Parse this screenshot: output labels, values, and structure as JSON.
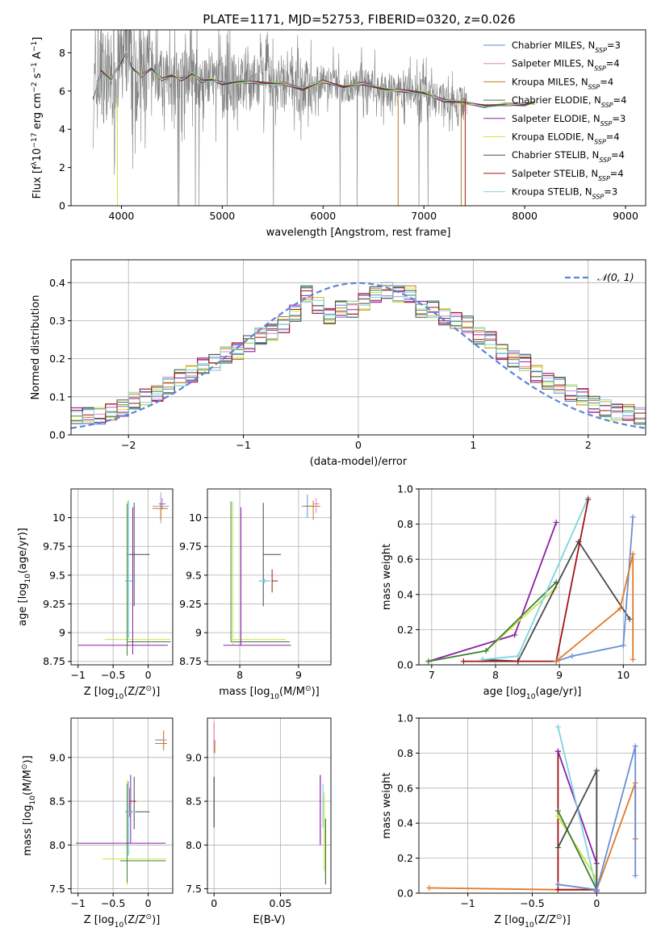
{
  "figure_title": "PLATE=1171, MJD=52753, FIBERID=0320, z=0.026",
  "colors": {
    "chabrier_miles": "#5b84d8",
    "salpeter_miles": "#e57fc0",
    "kroupa_miles": "#c07a20",
    "chabrier_elodie": "#3f7d3f",
    "salpeter_elodie": "#8b1fa8",
    "kroupa_elodie": "#c8e83a",
    "chabrier_stelib": "#4a4a4a",
    "salpeter_stelib": "#a01515",
    "kroupa_stelib": "#7fd3e0",
    "orange": "#e07a2a",
    "blue": "#6a8fd6",
    "data": "#808080"
  },
  "chart_data": [
    {
      "id": "spectrum",
      "type": "line",
      "title": "PLATE=1171, MJD=52753, FIBERID=0320, z=0.026",
      "xlabel": "wavelength [Angstrom, rest frame]",
      "ylabel_parts": [
        "Flux [f",
        "λ",
        "10",
        "−17",
        " erg cm",
        "−2",
        " s",
        "−1",
        " A",
        "−1",
        "]"
      ],
      "xlim": [
        3500,
        9200
      ],
      "ylim": [
        0,
        9.2
      ],
      "xticks": [
        4000,
        5000,
        6000,
        7000,
        8000,
        9000
      ],
      "yticks": [
        0,
        2,
        4,
        6,
        8
      ],
      "grid": false,
      "legend_position": "top-right",
      "legend": [
        {
          "base": "Chabrier MILES, N",
          "sub": "SSP",
          "tail": "=3",
          "color": "#5b84d8"
        },
        {
          "base": "Salpeter MILES, N",
          "sub": "SSP",
          "tail": "=4",
          "color": "#e57fc0"
        },
        {
          "base": "Kroupa MILES, N",
          "sub": "SSP",
          "tail": "=4",
          "color": "#c07a20"
        },
        {
          "base": "Chabrier ELODIE, N",
          "sub": "SSP",
          "tail": "=4",
          "color": "#3f7d3f"
        },
        {
          "base": "Salpeter ELODIE, N",
          "sub": "SSP",
          "tail": "=3",
          "color": "#8b1fa8"
        },
        {
          "base": "Kroupa ELODIE, N",
          "sub": "SSP",
          "tail": "=4",
          "color": "#c8e83a"
        },
        {
          "base": "Chabrier STELIB, N",
          "sub": "SSP",
          "tail": "=4",
          "color": "#4a4a4a"
        },
        {
          "base": "Salpeter STELIB, N",
          "sub": "SSP",
          "tail": "=4",
          "color": "#a01515"
        },
        {
          "base": "Kroupa STELIB, N",
          "sub": "SSP",
          "tail": "=3",
          "color": "#7fd3e0"
        }
      ],
      "model_curve": {
        "x": [
          3720,
          3800,
          3900,
          4000,
          4050,
          4100,
          4200,
          4300,
          4400,
          4500,
          4600,
          4700,
          4800,
          4900,
          5000,
          5200,
          5400,
          5600,
          5800,
          6000,
          6200,
          6400,
          6600,
          6800,
          7000,
          7200,
          7400,
          7600,
          7800,
          8000,
          8100
        ],
        "y": [
          5.6,
          7.0,
          6.6,
          7.6,
          8.0,
          7.2,
          6.8,
          7.2,
          6.6,
          6.8,
          6.6,
          6.9,
          6.5,
          6.6,
          6.4,
          6.5,
          6.4,
          6.4,
          6.1,
          6.5,
          6.2,
          6.4,
          6.1,
          6.0,
          5.9,
          5.5,
          5.4,
          5.2,
          5.3,
          5.3,
          5.4
        ]
      },
      "data_spectrum_range": [
        3720,
        7430
      ]
    },
    {
      "id": "residual_hist",
      "type": "line",
      "xlabel": "(data-model)/error",
      "ylabel": "Normed distribution",
      "xlim": [
        -2.5,
        2.5
      ],
      "ylim": [
        0,
        0.46
      ],
      "xticks": [
        -2,
        -1,
        0,
        1,
        2
      ],
      "yticks": [
        0.0,
        0.1,
        0.2,
        0.3,
        0.4
      ],
      "grid": true,
      "legend_position": "top-right",
      "legend": [
        {
          "label": "𝒩(0, 1)",
          "color": "#5b84d8",
          "dashed": true
        }
      ],
      "bin_width": 0.1,
      "bin_start": -2.5,
      "series": [
        {
          "name": "Chabrier MILES",
          "color": "#5b84d8",
          "values": [
            0.05,
            0.05,
            0.05,
            0.06,
            0.07,
            0.09,
            0.1,
            0.11,
            0.13,
            0.15,
            0.16,
            0.18,
            0.19,
            0.21,
            0.22,
            0.24,
            0.26,
            0.27,
            0.29,
            0.32,
            0.37,
            0.34,
            0.31,
            0.33,
            0.33,
            0.35,
            0.37,
            0.38,
            0.37,
            0.37,
            0.33,
            0.33,
            0.31,
            0.3,
            0.29,
            0.26,
            0.25,
            0.22,
            0.2,
            0.19,
            0.16,
            0.14,
            0.13,
            0.11,
            0.1,
            0.08,
            0.07,
            0.06,
            0.06,
            0.05
          ]
        }
      ]
    },
    {
      "id": "age_vs_Z",
      "type": "scatter",
      "xlabel_parts": [
        "Z [log",
        "10",
        "(Z/Z",
        "⊙",
        ")]"
      ],
      "ylabel_parts": [
        "age  [log",
        "10",
        "(age/yr)]"
      ],
      "xlim": [
        -1.1,
        0.35
      ],
      "ylim": [
        8.72,
        10.25
      ],
      "xticks": [
        -1.0,
        -0.5,
        0.0
      ],
      "yticks": [
        8.75,
        9.0,
        9.25,
        9.5,
        9.75,
        10.0
      ],
      "grid": true
    },
    {
      "id": "age_vs_mass",
      "type": "scatter",
      "xlabel_parts": [
        "mass [log",
        "10",
        "(M/M",
        "⊙",
        ")]"
      ],
      "xlim": [
        7.45,
        9.55
      ],
      "ylim": [
        8.72,
        10.25
      ],
      "xticks": [
        8,
        9
      ],
      "yticks": [
        8.75,
        9.0,
        9.25,
        9.5,
        9.75,
        10.0
      ],
      "grid": true
    },
    {
      "id": "massweight_vs_age",
      "type": "line",
      "xlabel_parts": [
        "age  [log",
        "10",
        "(age/yr)]"
      ],
      "ylabel": "mass weight",
      "xlim": [
        6.8,
        10.35
      ],
      "ylim": [
        0,
        1
      ],
      "xticks": [
        7,
        8,
        9,
        10
      ],
      "yticks": [
        0.0,
        0.2,
        0.4,
        0.6,
        0.8,
        1.0
      ],
      "grid": true
    },
    {
      "id": "mass_vs_Z",
      "type": "scatter",
      "xlabel_parts": [
        "Z [log",
        "10",
        "(Z/Z",
        "⊙",
        ")]"
      ],
      "ylabel_parts": [
        "mass [log",
        "10",
        "(M/M",
        "⊙",
        ")]"
      ],
      "xlim": [
        -1.1,
        0.35
      ],
      "ylim": [
        7.45,
        9.45
      ],
      "xticks": [
        -1.0,
        -0.5,
        0.0
      ],
      "yticks": [
        7.5,
        8.0,
        8.5,
        9.0
      ],
      "grid": true
    },
    {
      "id": "mass_vs_ebv",
      "type": "scatter",
      "xlabel": "E(B-V)",
      "xlim": [
        -0.005,
        0.088
      ],
      "ylim": [
        7.45,
        9.45
      ],
      "xticks": [
        0.0,
        0.05
      ],
      "yticks": [
        7.5,
        8.0,
        8.5,
        9.0
      ],
      "grid": true
    },
    {
      "id": "massweight_vs_Z",
      "type": "line",
      "xlabel_parts": [
        "Z [log",
        "10",
        "(Z/Z",
        "⊙",
        ")]"
      ],
      "ylabel": "mass weight",
      "xlim": [
        -1.38,
        0.38
      ],
      "ylim": [
        0,
        1
      ],
      "xticks": [
        -1.0,
        -0.5,
        0.0
      ],
      "yticks": [
        0.0,
        0.2,
        0.4,
        0.6,
        0.8,
        1.0
      ],
      "grid": true
    }
  ]
}
